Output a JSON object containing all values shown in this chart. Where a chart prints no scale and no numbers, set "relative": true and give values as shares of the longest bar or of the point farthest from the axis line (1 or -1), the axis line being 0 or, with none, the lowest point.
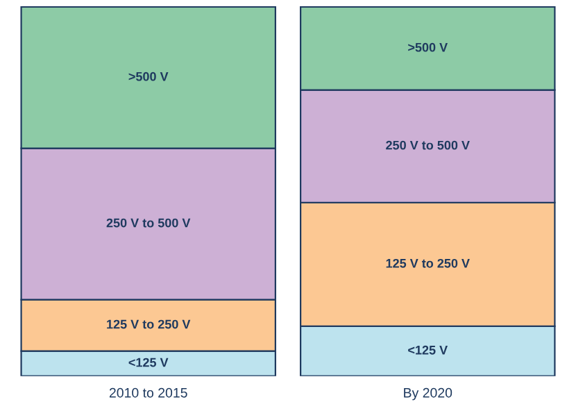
{
  "chart_data": {
    "type": "bar",
    "stacked": true,
    "relative": true,
    "categories": [
      "2010 to 2015",
      "By 2020"
    ],
    "series": [
      {
        "name": "<125 V",
        "color": "#bde3ee",
        "values": [
          0.068,
          0.135
        ]
      },
      {
        "name": "125 V to 250 V",
        "color": "#fcc893",
        "values": [
          0.139,
          0.335
        ]
      },
      {
        "name": "250 V to 500 V",
        "color": "#cdb0d5",
        "values": [
          0.41,
          0.305
        ]
      },
      {
        "name": ">500 V",
        "color": "#8dcba6",
        "values": [
          0.383,
          0.225
        ]
      }
    ],
    "legend": false
  }
}
